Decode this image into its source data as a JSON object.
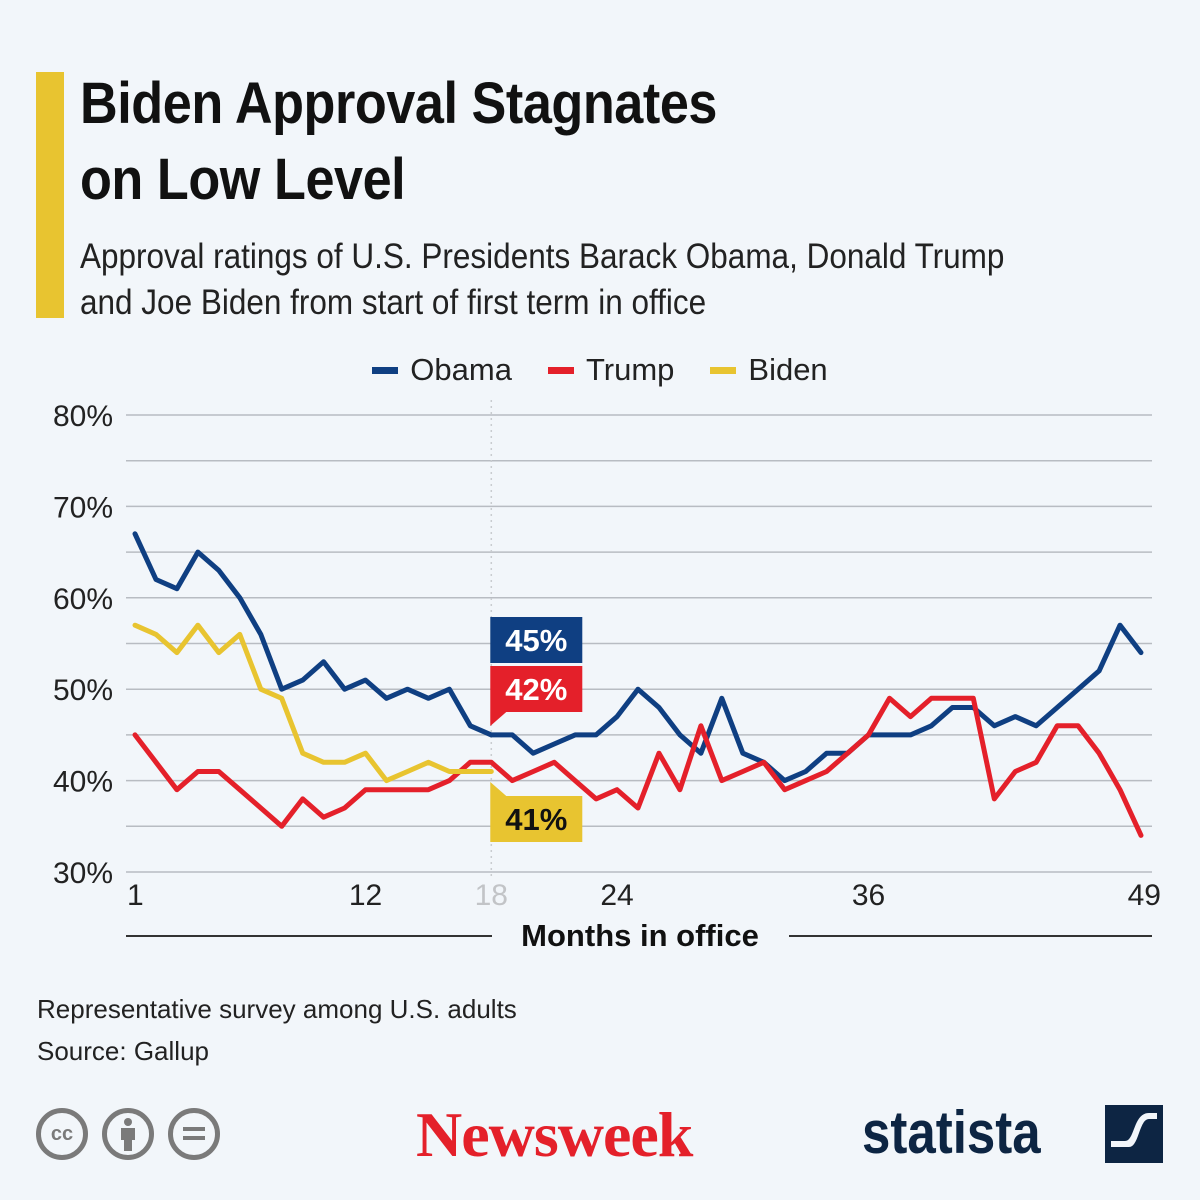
{
  "header": {
    "title_line1": "Biden Approval Stagnates",
    "title_line2": "on Low Level",
    "subtitle_line1": "Approval ratings of U.S. Presidents Barack Obama, Donald Trump",
    "subtitle_line2": "and Joe Biden from start of first term in office",
    "accent_color": "#e8c430"
  },
  "chart_data": {
    "type": "line",
    "title": "Biden Approval Stagnates on Low Level",
    "xlabel": "Months in office",
    "ylabel": "",
    "ylim": [
      30,
      80
    ],
    "xlim": [
      1,
      49
    ],
    "yticks": [
      "30%",
      "40%",
      "50%",
      "60%",
      "70%",
      "80%"
    ],
    "ytick_values": [
      30,
      40,
      50,
      60,
      70,
      80
    ],
    "xticks": [
      1,
      12,
      18,
      24,
      36,
      49
    ],
    "highlight_x": 18,
    "grid": true,
    "legend_position": "top-center",
    "series": [
      {
        "name": "Obama",
        "color": "#0f3f82",
        "values": [
          67,
          62,
          61,
          65,
          63,
          60,
          56,
          50,
          51,
          53,
          50,
          51,
          49,
          50,
          49,
          50,
          46,
          45,
          45,
          43,
          44,
          45,
          45,
          47,
          50,
          48,
          45,
          43,
          49,
          43,
          42,
          40,
          41,
          43,
          43,
          45,
          45,
          45,
          46,
          48,
          48,
          46,
          47,
          46,
          48,
          50,
          52,
          57,
          54
        ]
      },
      {
        "name": "Trump",
        "color": "#e4202a",
        "values": [
          45,
          42,
          39,
          41,
          41,
          39,
          37,
          35,
          38,
          36,
          37,
          39,
          39,
          39,
          39,
          40,
          42,
          42,
          40,
          41,
          42,
          40,
          38,
          39,
          37,
          43,
          39,
          46,
          40,
          41,
          42,
          39,
          40,
          41,
          43,
          45,
          49,
          47,
          49,
          49,
          49,
          38,
          41,
          42,
          46,
          46,
          43,
          39,
          34
        ]
      },
      {
        "name": "Biden",
        "color": "#e8c430",
        "values": [
          57,
          56,
          54,
          57,
          54,
          56,
          50,
          49,
          43,
          42,
          42,
          43,
          40,
          41,
          42,
          41,
          41,
          41
        ]
      }
    ],
    "annotations": [
      {
        "series": "Obama",
        "x": 18,
        "label": "45%",
        "color": "#0f3f82",
        "text_color": "#ffffff"
      },
      {
        "series": "Trump",
        "x": 18,
        "label": "42%",
        "color": "#e4202a",
        "text_color": "#ffffff"
      },
      {
        "series": "Biden",
        "x": 18,
        "label": "41%",
        "color": "#e8c430",
        "text_color": "#111111"
      }
    ]
  },
  "footer": {
    "note": "Representative survey among U.S. adults",
    "source": "Source: Gallup",
    "license_icons": [
      "cc-icon",
      "attribution-icon",
      "no-derivatives-icon"
    ],
    "cc_label": "cc",
    "brand_newsweek": "Newsweek",
    "brand_statista": "statista"
  }
}
